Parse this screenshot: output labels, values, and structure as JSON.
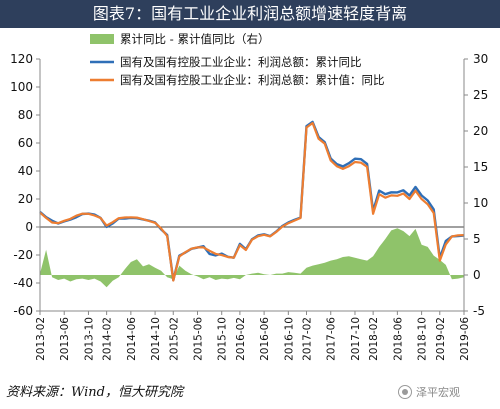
{
  "title": "图表7：国有工业企业利润总额增速轻度背离",
  "source": "资料来源：Wind，恒大研究院",
  "watermark": "泽平宏观",
  "colors": {
    "area": "#8fc36a",
    "blue": "#2f6fb7",
    "orange": "#ed7d31",
    "title_bg": "#2e3f5c"
  },
  "chart_data": {
    "type": "line",
    "x": [
      "2013-02",
      "2013-03",
      "2013-04",
      "2013-05",
      "2013-06",
      "2013-07",
      "2013-08",
      "2013-09",
      "2013-10",
      "2013-11",
      "2013-12",
      "2014-02",
      "2014-03",
      "2014-04",
      "2014-05",
      "2014-06",
      "2014-07",
      "2014-08",
      "2014-09",
      "2014-10",
      "2014-11",
      "2014-12",
      "2015-02",
      "2015-03",
      "2015-04",
      "2015-05",
      "2015-06",
      "2015-07",
      "2015-08",
      "2015-09",
      "2015-10",
      "2015-11",
      "2015-12",
      "2016-02",
      "2016-03",
      "2016-04",
      "2016-05",
      "2016-06",
      "2016-07",
      "2016-08",
      "2016-09",
      "2016-10",
      "2016-11",
      "2016-12",
      "2017-02",
      "2017-03",
      "2017-04",
      "2017-05",
      "2017-06",
      "2017-07",
      "2017-08",
      "2017-09",
      "2017-10",
      "2017-11",
      "2017-12",
      "2018-02",
      "2018-03",
      "2018-04",
      "2018-05",
      "2018-06",
      "2018-07",
      "2018-08",
      "2018-09",
      "2018-10",
      "2018-11",
      "2018-12",
      "2019-02",
      "2019-03",
      "2019-04",
      "2019-05",
      "2019-06"
    ],
    "x_tick_labels": [
      "2013-02",
      "2013-06",
      "2013-10",
      "2014-02",
      "2014-06",
      "2014-10",
      "2015-02",
      "2015-06",
      "2015-10",
      "2016-02",
      "2016-06",
      "2016-10",
      "2017-02",
      "2017-06",
      "2017-10",
      "2018-02",
      "2018-06",
      "2018-10",
      "2019-02",
      "2019-06"
    ],
    "left_axis": {
      "ylim": [
        -60,
        120
      ],
      "ticks": [
        -60,
        -40,
        -20,
        0,
        20,
        40,
        60,
        80,
        100,
        120
      ]
    },
    "right_axis": {
      "ylim": [
        -5,
        30
      ],
      "ticks": [
        -5,
        0,
        5,
        10,
        15,
        20,
        25,
        30
      ]
    },
    "series": [
      {
        "name": "累计同比 - 累计值同比（右）",
        "type": "area",
        "axis": "right",
        "values": [
          0.2,
          3.5,
          -0.3,
          -0.7,
          -0.5,
          -0.9,
          -0.6,
          -0.5,
          -0.7,
          -0.5,
          -0.9,
          -1.7,
          -0.8,
          -0.3,
          0.8,
          1.8,
          2.2,
          1.2,
          1.5,
          1.0,
          0.6,
          -0.3,
          -0.6,
          1.3,
          0.6,
          0.1,
          -0.2,
          -0.6,
          -0.3,
          -0.7,
          -0.5,
          -0.6,
          -0.4,
          -0.6,
          0.0,
          0.2,
          0.3,
          0.1,
          0.0,
          0.2,
          0.2,
          0.4,
          0.3,
          0.2,
          1.0,
          1.3,
          1.5,
          1.7,
          2.0,
          2.2,
          2.5,
          2.6,
          2.4,
          2.2,
          2.0,
          2.6,
          3.9,
          5.0,
          6.2,
          6.5,
          6.1,
          5.4,
          6.4,
          4.2,
          3.9,
          2.7,
          2.1,
          1.4,
          -0.6,
          -0.5,
          -0.3
        ]
      },
      {
        "name": "国有及国有控股工业企业：利润总额：累计同比",
        "type": "line",
        "axis": "left",
        "values": [
          10.8,
          7.0,
          4.5,
          2.5,
          4.0,
          5.3,
          7.0,
          9.3,
          9.6,
          8.9,
          6.5,
          0.1,
          2.5,
          6.0,
          6.0,
          6.5,
          6.3,
          5.4,
          4.5,
          3.3,
          -1.7,
          -5.7,
          -38.0,
          -20.5,
          -18.2,
          -15.6,
          -14.7,
          -13.7,
          -19.3,
          -20.3,
          -19.0,
          -21.3,
          -21.9,
          -12.1,
          -15.9,
          -8.8,
          -6.0,
          -5.2,
          -6.5,
          -3.3,
          0.7,
          3.2,
          5.1,
          6.7,
          72.1,
          75.1,
          64.3,
          60.6,
          48.9,
          44.9,
          43.3,
          45.6,
          48.8,
          48.4,
          45.1,
          11.4,
          26.0,
          23.4,
          24.8,
          24.7,
          26.2,
          22.5,
          28.6,
          22.5,
          18.9,
          12.6,
          -22.2,
          -10.0,
          -6.7,
          -6.4,
          -6.1
        ]
      },
      {
        "name": "国有及国有控股工业企业：利润总额：累计值：同比",
        "type": "line",
        "axis": "left",
        "values": [
          10.3,
          6.5,
          3.2,
          2.8,
          4.4,
          5.8,
          8.1,
          9.5,
          9.4,
          8.2,
          6.4,
          1.0,
          3.4,
          6.3,
          6.8,
          6.9,
          6.7,
          5.6,
          4.3,
          3.0,
          -1.0,
          -6.5,
          -38.2,
          -21.1,
          -18.0,
          -15.5,
          -14.5,
          -14.6,
          -17.0,
          -19.2,
          -20.1,
          -21.4,
          -21.9,
          -13.0,
          -16.4,
          -9.1,
          -6.6,
          -5.6,
          -6.7,
          -3.6,
          0.2,
          2.7,
          4.6,
          6.4,
          71.1,
          74.3,
          63.0,
          59.6,
          47.5,
          43.4,
          41.5,
          43.4,
          46.4,
          45.9,
          43.0,
          9.4,
          23.4,
          20.9,
          22.6,
          22.3,
          23.9,
          20.0,
          25.9,
          19.9,
          16.2,
          10.0,
          -24.1,
          -12.4,
          -6.7,
          -5.9,
          -5.8
        ]
      }
    ]
  }
}
